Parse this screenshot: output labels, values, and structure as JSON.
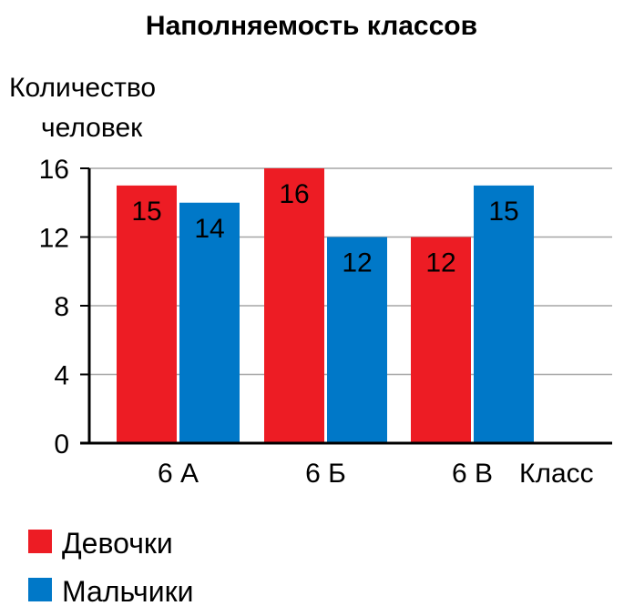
{
  "chart_data": {
    "type": "bar",
    "title": "Наполняемость классов",
    "ylabel": [
      "Количество",
      "человек"
    ],
    "xlabel": "Класс",
    "categories": [
      "6 А",
      "6 Б",
      "6 В"
    ],
    "series": [
      {
        "name": "Девочки",
        "color": "#ed1c24",
        "values": [
          15,
          16,
          12
        ]
      },
      {
        "name": "Мальчики",
        "color": "#0078c8",
        "values": [
          14,
          12,
          15
        ]
      }
    ],
    "ylim": [
      0,
      16
    ],
    "yticks": [
      0,
      4,
      8,
      12,
      16
    ],
    "yticks_labels": [
      "0",
      "4",
      "8",
      "12",
      "16"
    ],
    "grid": true,
    "legend": "bottom-left"
  }
}
